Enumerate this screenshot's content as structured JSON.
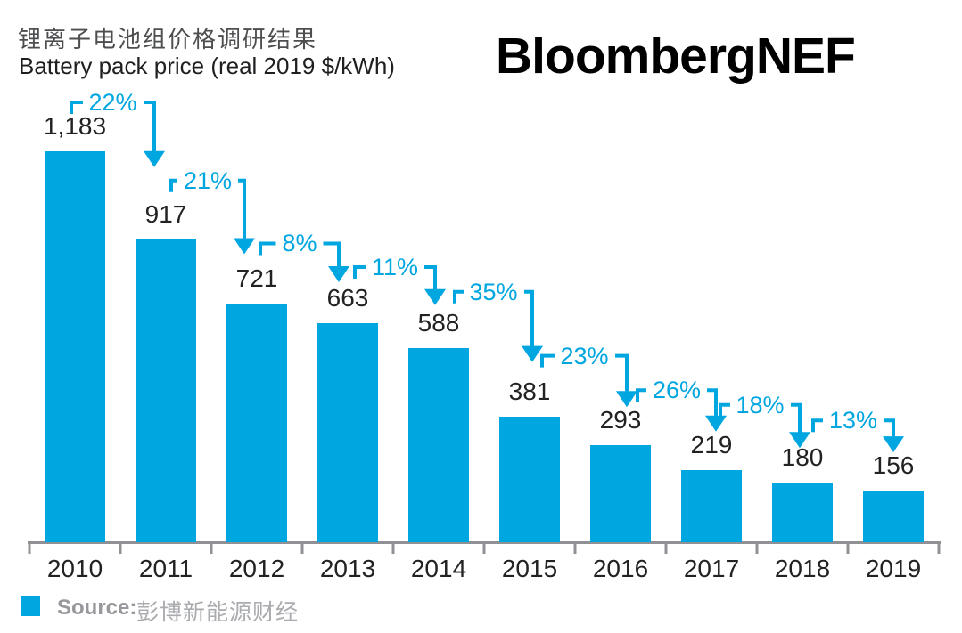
{
  "header": {
    "title_zh": "锂离子电池组价格调研结果",
    "subtitle_en": "Battery pack price (real 2019 $/kWh)",
    "logo": "BloombergNEF"
  },
  "footer": {
    "source_label": "Source:",
    "source_name": "彭博新能源财经"
  },
  "colors": {
    "bar": "#00a6e0",
    "accent": "#00a6e0",
    "value_text": "#222222",
    "axis": "#8f9194",
    "title_zh": "#4d4e50",
    "source_label": "#96989b",
    "source_name": "#a9abae"
  },
  "chart_data": {
    "type": "bar",
    "title": "Battery pack price (real 2019 $/kWh)",
    "title_zh": "锂离子电池组价格调研结果",
    "xlabel": "",
    "ylabel": "Battery pack price (real 2019 $/kWh)",
    "categories": [
      "2010",
      "2011",
      "2012",
      "2013",
      "2014",
      "2015",
      "2016",
      "2017",
      "2018",
      "2019"
    ],
    "values": [
      1183,
      917,
      721,
      663,
      588,
      381,
      293,
      219,
      180,
      156
    ],
    "value_labels": [
      "1,183",
      "917",
      "721",
      "663",
      "588",
      "381",
      "293",
      "219",
      "180",
      "156"
    ],
    "pct_decline_labels": [
      "22%",
      "21%",
      "8%",
      "11%",
      "35%",
      "23%",
      "26%",
      "18%",
      "13%"
    ],
    "pct_decline_values": [
      22,
      21,
      8,
      11,
      35,
      23,
      26,
      18,
      13
    ],
    "ylim": [
      0,
      1183
    ],
    "grid": false,
    "legend_position": "none",
    "bar_color": "#00a6e0",
    "annotation_style": "down-arrow-between-consecutive-bars"
  }
}
